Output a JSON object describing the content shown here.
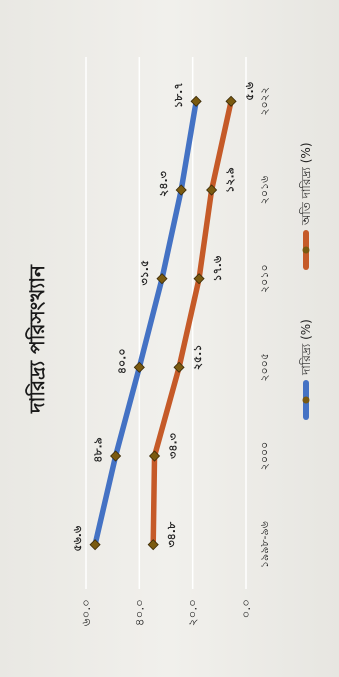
{
  "chart_data": {
    "type": "line",
    "title": "দারিদ্র্য পরিসংখ্যান",
    "categories": [
      "১৯৯৮-৯৬",
      "২০০০",
      "২০০৫",
      "২০১০",
      "২০১৬",
      "২০২২"
    ],
    "ytick_labels": [
      "০.০",
      "২০.০",
      "৪০.০",
      "৬০.০"
    ],
    "ylim": [
      0,
      60
    ],
    "grid": true,
    "legend_position": "bottom",
    "series": [
      {
        "name": "দারিদ্র্য (%)",
        "color": "#4472c4",
        "values": [
          56.6,
          48.9,
          40.0,
          31.5,
          24.3,
          18.7
        ],
        "labels": [
          "৫৬.৬",
          "৪৮.৯",
          "৪০.০",
          "৩১.৫",
          "২৪.৩",
          "১৮.৭"
        ]
      },
      {
        "name": "অতি দারিদ্র্য (%)",
        "color": "#c55a28",
        "values": [
          34.8,
          34.3,
          25.1,
          17.6,
          12.9,
          5.6
        ],
        "labels": [
          "৩৪.৮",
          "৩৪.৩",
          "২৫.১",
          "১৭.৬",
          "১২.৯",
          "৫.৬"
        ]
      }
    ]
  }
}
